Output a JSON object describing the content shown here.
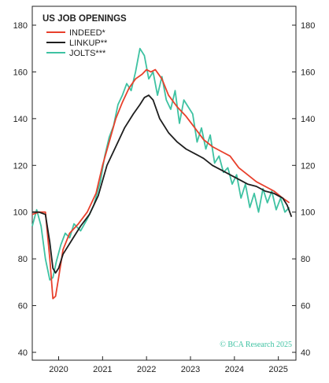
{
  "chart_data": {
    "type": "line",
    "title": "US JOB OPENINGS",
    "xlabel": "",
    "ylabel": "",
    "ylim": [
      38,
      185
    ],
    "xlim": [
      2019.4,
      2025.4
    ],
    "yticks": [
      40,
      60,
      80,
      100,
      120,
      140,
      160,
      180
    ],
    "xticks": [
      2020,
      2021,
      2022,
      2023,
      2024,
      2025
    ],
    "grid": false,
    "legend_position": "top-left",
    "credit": "© BCA Research 2025",
    "series": [
      {
        "name": "INDEED*",
        "color": "#e8402c",
        "x": [
          2019.4,
          2019.55,
          2019.7,
          2019.8,
          2019.87,
          2019.93,
          2020.0,
          2020.1,
          2020.25,
          2020.45,
          2020.65,
          2020.85,
          2021.0,
          2021.15,
          2021.3,
          2021.45,
          2021.6,
          2021.75,
          2021.9,
          2022.0,
          2022.1,
          2022.2,
          2022.35,
          2022.5,
          2022.7,
          2022.9,
          2023.1,
          2023.3,
          2023.5,
          2023.7,
          2023.9,
          2024.1,
          2024.3,
          2024.5,
          2024.7,
          2024.9,
          2025.1,
          2025.25
        ],
        "y": [
          99,
          100,
          100,
          80,
          63,
          64,
          72,
          84,
          91,
          95,
          100,
          108,
          120,
          130,
          140,
          147,
          153,
          157,
          159,
          161,
          160,
          161,
          157,
          150,
          145,
          141,
          136,
          131,
          128,
          126,
          124,
          119,
          116,
          113,
          111,
          109,
          106,
          104
        ]
      },
      {
        "name": "LINKUP**",
        "color": "#1e1e1e",
        "x": [
          2019.4,
          2019.55,
          2019.7,
          2019.8,
          2019.87,
          2019.93,
          2020.0,
          2020.1,
          2020.3,
          2020.5,
          2020.7,
          2020.9,
          2021.1,
          2021.3,
          2021.5,
          2021.7,
          2021.85,
          2021.95,
          2022.05,
          2022.15,
          2022.3,
          2022.5,
          2022.7,
          2022.9,
          2023.1,
          2023.3,
          2023.5,
          2023.7,
          2023.9,
          2024.1,
          2024.3,
          2024.5,
          2024.7,
          2024.9,
          2025.1,
          2025.2,
          2025.3
        ],
        "y": [
          100,
          100,
          99,
          87,
          76,
          74,
          76,
          82,
          88,
          94,
          99,
          107,
          120,
          128,
          136,
          142,
          146,
          149,
          150,
          148,
          140,
          134,
          130,
          127,
          125,
          123,
          120,
          118,
          116,
          114,
          112,
          111,
          109,
          108,
          106,
          103,
          98
        ]
      },
      {
        "name": "JOLTS***",
        "color": "#3ec2a2",
        "x": [
          2019.4,
          2019.5,
          2019.6,
          2019.7,
          2019.8,
          2019.87,
          2019.95,
          2020.05,
          2020.15,
          2020.25,
          2020.35,
          2020.5,
          2020.65,
          2020.8,
          2020.95,
          2021.05,
          2021.15,
          2021.25,
          2021.35,
          2021.45,
          2021.55,
          2021.65,
          2021.75,
          2021.85,
          2021.95,
          2022.05,
          2022.15,
          2022.25,
          2022.35,
          2022.45,
          2022.55,
          2022.65,
          2022.75,
          2022.85,
          2022.95,
          2023.05,
          2023.15,
          2023.25,
          2023.35,
          2023.45,
          2023.55,
          2023.65,
          2023.75,
          2023.85,
          2023.95,
          2024.05,
          2024.15,
          2024.25,
          2024.35,
          2024.45,
          2024.55,
          2024.65,
          2024.75,
          2024.85,
          2024.95,
          2025.05,
          2025.15,
          2025.25
        ],
        "y": [
          94,
          101,
          94,
          80,
          71,
          72,
          79,
          86,
          91,
          89,
          95,
          92,
          97,
          103,
          113,
          124,
          132,
          137,
          146,
          150,
          155,
          152,
          160,
          170,
          167,
          157,
          160,
          150,
          158,
          148,
          144,
          152,
          138,
          148,
          145,
          142,
          130,
          136,
          127,
          133,
          121,
          124,
          117,
          119,
          112,
          116,
          106,
          112,
          102,
          108,
          100,
          110,
          104,
          109,
          101,
          106,
          100,
          102
        ]
      }
    ]
  }
}
